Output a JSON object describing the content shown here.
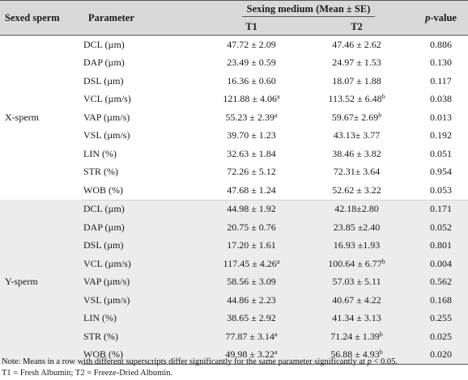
{
  "header": {
    "sexed_sperm": "Sexed sperm",
    "parameter": "Parameter",
    "group": "Sexing medium (Mean ± SE)",
    "t1": "T1",
    "t2": "T2",
    "p_value_p": "p",
    "p_value_rest": "-value"
  },
  "groups": [
    {
      "label": "X-sperm",
      "rows": [
        {
          "param": "DCL (µm)",
          "t1": "47.72 ± 2.09",
          "t1_sup": "",
          "t2": "47.46 ± 2.62",
          "t2_sup": "",
          "p": "0.886"
        },
        {
          "param": "DAP (µm)",
          "t1": "23.49 ± 0.59",
          "t1_sup": "",
          "t2": "24.97 ± 1.53",
          "t2_sup": "",
          "p": "0.130"
        },
        {
          "param": "DSL (µm)",
          "t1": "16.36 ± 0.60",
          "t1_sup": "",
          "t2": "18.07 ± 1.88",
          "t2_sup": "",
          "p": "0.117"
        },
        {
          "param": "VCL (µm/s)",
          "t1": "121.88 ± 4.06",
          "t1_sup": "a",
          "t2": "113.52 ± 6.48",
          "t2_sup": "b",
          "p": "0.038"
        },
        {
          "param": "VAP (µm/s)",
          "t1": "55.23 ± 2.39",
          "t1_sup": "a",
          "t2": "59.67± 2.69",
          "t2_sup": "b",
          "p": "0.013"
        },
        {
          "param": "VSL (µm/s)",
          "t1": "39.70 ± 1.23",
          "t1_sup": "",
          "t2": "43.13± 3.77",
          "t2_sup": "",
          "p": "0.192"
        },
        {
          "param": "LIN (%)",
          "t1": "32.63 ± 1.84",
          "t1_sup": "",
          "t2": "38.46 ± 3.82",
          "t2_sup": "",
          "p": "0.051"
        },
        {
          "param": "STR (%)",
          "t1": "72.26 ± 5.12",
          "t1_sup": "",
          "t2": "72.31± 3.64",
          "t2_sup": "",
          "p": "0.954"
        },
        {
          "param": "WOB (%)",
          "t1": "47.68 ± 1.24",
          "t1_sup": "",
          "t2": "52.62 ± 3.22",
          "t2_sup": "",
          "p": "0.053"
        }
      ]
    },
    {
      "label": "Y-sperm",
      "rows": [
        {
          "param": "DCL (µm)",
          "t1": "44.98 ± 1.92",
          "t1_sup": "",
          "t2": "42.18±2.80",
          "t2_sup": "",
          "p": "0.171"
        },
        {
          "param": "DAP (µm)",
          "t1": "20.75 ± 0.76",
          "t1_sup": "",
          "t2": "23.85 ±2.40",
          "t2_sup": "",
          "p": "0.052"
        },
        {
          "param": "DSL (µm)",
          "t1": "17.20 ± 1.61",
          "t1_sup": "",
          "t2": "16.93 ±1.93",
          "t2_sup": "",
          "p": "0.801"
        },
        {
          "param": "VCL (µm/s)",
          "t1": "117.45 ± 4.26",
          "t1_sup": "a",
          "t2": "100.64 ± 6.77",
          "t2_sup": "b",
          "p": "0.004"
        },
        {
          "param": "VAP (µm/s)",
          "t1": "58.56 ± 3.09",
          "t1_sup": "",
          "t2": "57.03 ± 5.11",
          "t2_sup": "",
          "p": "0.562"
        },
        {
          "param": "VSL (µm/s)",
          "t1": "44.86 ± 2.23",
          "t1_sup": "",
          "t2": "40.67 ± 4.22",
          "t2_sup": "",
          "p": "0.168"
        },
        {
          "param": "LIN (%)",
          "t1": "38.65 ± 2.92",
          "t1_sup": "",
          "t2": "41.34 ± 3.13",
          "t2_sup": "",
          "p": "0.255"
        },
        {
          "param": "STR (%)",
          "t1": "77.87 ± 3.14",
          "t1_sup": "a",
          "t2": "71.24 ± 1.39",
          "t2_sup": "b",
          "p": "0.025"
        },
        {
          "param": "WOB (%)",
          "t1": "49.98 ± 3.22",
          "t1_sup": "a",
          "t2": "56.88 ± 4.93",
          "t2_sup": "b",
          "p": "0.020"
        }
      ]
    }
  ],
  "note": {
    "line1_a": "Note: Means in a row with different superscripts differ significantly for the same parameter significantly at ",
    "line1_p": "p",
    "line1_b": " < 0.05.",
    "line2": "T1 = Fresh Albumin; T2 = Freeze-Dried Albumin."
  },
  "colors": {
    "header_bg": "#d9d9d9",
    "y_group_bg": "#ececec",
    "x_group_bg": "#ffffff"
  }
}
